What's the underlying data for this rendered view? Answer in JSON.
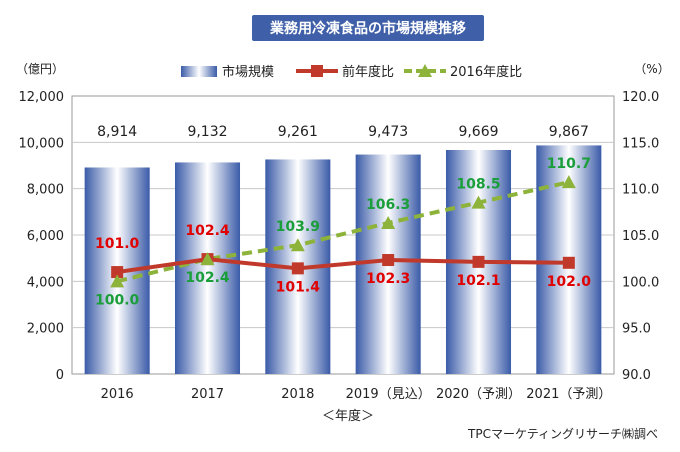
{
  "chart_data": {
    "type": "bar",
    "title": "業務用冷凍食品の市場規模推移",
    "categories": [
      "2016",
      "2017",
      "2018",
      "2019（見込）",
      "2020（予測）",
      "2021（予測）"
    ],
    "xlabel": "＜年度＞",
    "ylabel_left": "（億円）",
    "ylabel_right": "（%）",
    "ylim_left": [
      0,
      12000
    ],
    "yticks_left": [
      "0",
      "2,000",
      "4,000",
      "6,000",
      "8,000",
      "10,000",
      "12,000"
    ],
    "ylim_right": [
      90.0,
      120.0
    ],
    "yticks_right": [
      "90.0",
      "95.0",
      "100.0",
      "105.0",
      "110.0",
      "115.0",
      "120.0"
    ],
    "grid": true,
    "legend_position": "top",
    "series": [
      {
        "name": "市場規模",
        "kind": "bar",
        "axis": "left",
        "values": [
          8914,
          9132,
          9261,
          9473,
          9669,
          9867
        ],
        "labels": [
          "8,914",
          "9,132",
          "9,261",
          "9,473",
          "9,669",
          "9,867"
        ],
        "color": "#4f6fb5"
      },
      {
        "name": "前年度比",
        "kind": "line",
        "axis": "right",
        "values": [
          101.0,
          102.4,
          101.4,
          102.3,
          102.1,
          102.0
        ],
        "labels": [
          "101.0",
          "102.4",
          "101.4",
          "102.3",
          "102.1",
          "102.0"
        ],
        "color": "#c0392b",
        "label_color": "#e00000"
      },
      {
        "name": "2016年度比",
        "kind": "line",
        "axis": "right",
        "values": [
          100.0,
          102.4,
          103.9,
          106.3,
          108.5,
          110.7
        ],
        "labels": [
          "100.0",
          "102.4",
          "103.9",
          "106.3",
          "108.5",
          "110.7"
        ],
        "color": "#8db33a",
        "label_color": "#1a9e3a"
      }
    ],
    "source": "TPCマーケティングリサーチ㈱調べ"
  }
}
